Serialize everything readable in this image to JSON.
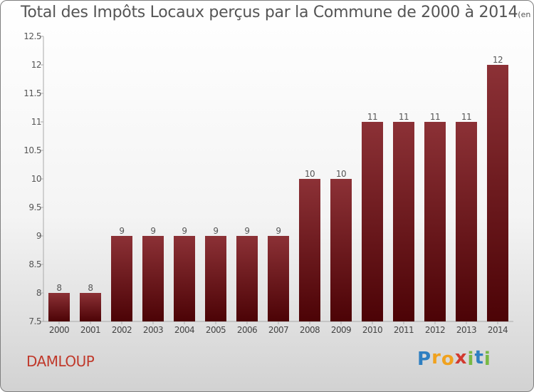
{
  "chart_data": {
    "type": "bar",
    "title": "Total des Impôts Locaux perçus par la Commune de 2000 à 2014",
    "unit_label": "(en milliers d'€)",
    "xlabel": "",
    "ylabel": "",
    "categories": [
      "2000",
      "2001",
      "2002",
      "2003",
      "2004",
      "2005",
      "2006",
      "2007",
      "2008",
      "2009",
      "2010",
      "2011",
      "2012",
      "2013",
      "2014"
    ],
    "values": [
      8,
      8,
      9,
      9,
      9,
      9,
      9,
      9,
      10,
      10,
      11,
      11,
      11,
      11,
      12
    ],
    "data_labels": [
      "8",
      "8",
      "9",
      "9",
      "9",
      "9",
      "9",
      "9",
      "10",
      "10",
      "11",
      "11",
      "11",
      "11",
      "12"
    ],
    "ylim": [
      7.5,
      12.5
    ],
    "yticks": [
      7.5,
      8,
      8.5,
      9,
      9.5,
      10,
      10.5,
      11,
      11.5,
      12,
      12.5
    ],
    "ytick_labels": [
      "7.5",
      "8",
      "8.5",
      "9",
      "9.5",
      "10",
      "10.5",
      "11",
      "11.5",
      "12",
      "12.5"
    ],
    "grid": false,
    "legend": "none",
    "bar_color": "#7a1f24"
  },
  "commune": "DAMLOUP",
  "logo": {
    "letters": [
      "P",
      "r",
      "o",
      "x",
      "i",
      "t",
      "i"
    ],
    "colors": [
      "#2e7fc1",
      "#f0a21f",
      "#f0a21f",
      "#d23a2f",
      "#78b944",
      "#2e7fc1",
      "#78b944"
    ]
  }
}
